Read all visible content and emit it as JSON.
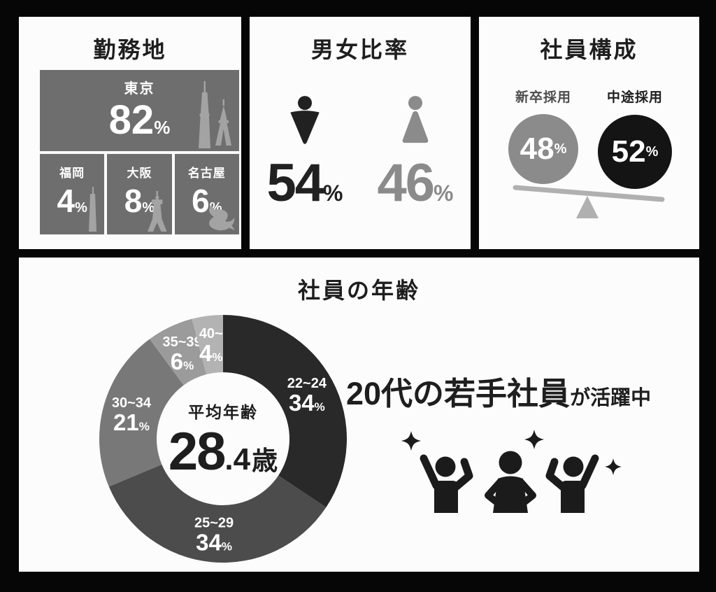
{
  "colors": {
    "bg": "#060606",
    "panel": "#fcfcfc",
    "ink": "#1e1e1e",
    "box-gray": "#6e6e6e",
    "landmark-gray": "#a3a3a3",
    "male": "#212121",
    "female": "#8b8b8b",
    "grad-circle": "#8b8b8b",
    "mid-circle": "#141414",
    "label-soft": "#4d4d4d",
    "seesaw": "#b0b0b0",
    "icon-black": "#1b1b1b"
  },
  "panels": {
    "location": {
      "title": "勤務地",
      "items": [
        {
          "name": "東京",
          "value": "82",
          "unit": "%"
        },
        {
          "name": "福岡",
          "value": "4",
          "unit": "%"
        },
        {
          "name": "大阪",
          "value": "8",
          "unit": "%"
        },
        {
          "name": "名古屋",
          "value": "6",
          "unit": "%"
        }
      ]
    },
    "gender": {
      "title": "男女比率",
      "male_value": "54",
      "male_unit": "%",
      "female_value": "46",
      "female_unit": "%"
    },
    "composition": {
      "title": "社員構成",
      "left_label": "新卒採用",
      "left_value": "48",
      "left_unit": "%",
      "right_label": "中途採用",
      "right_value": "52",
      "right_unit": "%"
    },
    "age": {
      "title": "社員の年齢",
      "center_label": "平均年齢",
      "center_value_int": "28",
      "center_value_dec": ".4",
      "center_value_unit": "歳",
      "headline_strong": "20代の若手社員",
      "headline_rest": "が活躍中"
    }
  },
  "chart_data": [
    {
      "id": "location",
      "type": "pie",
      "layout_hint": "proportional-boxes",
      "title": "勤務地",
      "categories": [
        "東京",
        "福岡",
        "大阪",
        "名古屋"
      ],
      "values": [
        82,
        4,
        8,
        6
      ],
      "unit": "%"
    },
    {
      "id": "gender",
      "type": "pie",
      "layout_hint": "pictogram",
      "title": "男女比率",
      "categories": [
        "男",
        "女"
      ],
      "values": [
        54,
        46
      ],
      "unit": "%",
      "colors": [
        "#212121",
        "#8b8b8b"
      ]
    },
    {
      "id": "composition",
      "type": "pie",
      "layout_hint": "balance-circles",
      "title": "社員構成",
      "categories": [
        "新卒採用",
        "中途採用"
      ],
      "values": [
        48,
        52
      ],
      "unit": "%",
      "colors": [
        "#8b8b8b",
        "#141414"
      ]
    },
    {
      "id": "age",
      "type": "pie",
      "subtype": "donut",
      "title": "社員の年齢",
      "categories": [
        "22~24",
        "25~29",
        "30~34",
        "35~39",
        "40~"
      ],
      "values": [
        34,
        34,
        21,
        6,
        4
      ],
      "unit": "%",
      "colors": [
        "#292929",
        "#4c4c4c",
        "#787878",
        "#9b9b9b",
        "#b3b3b3"
      ],
      "start_angle_deg": 0,
      "direction": "clockwise",
      "legend": "labels-on-slices",
      "center_label": "平均年齢",
      "center_value": "28.4歳"
    }
  ]
}
